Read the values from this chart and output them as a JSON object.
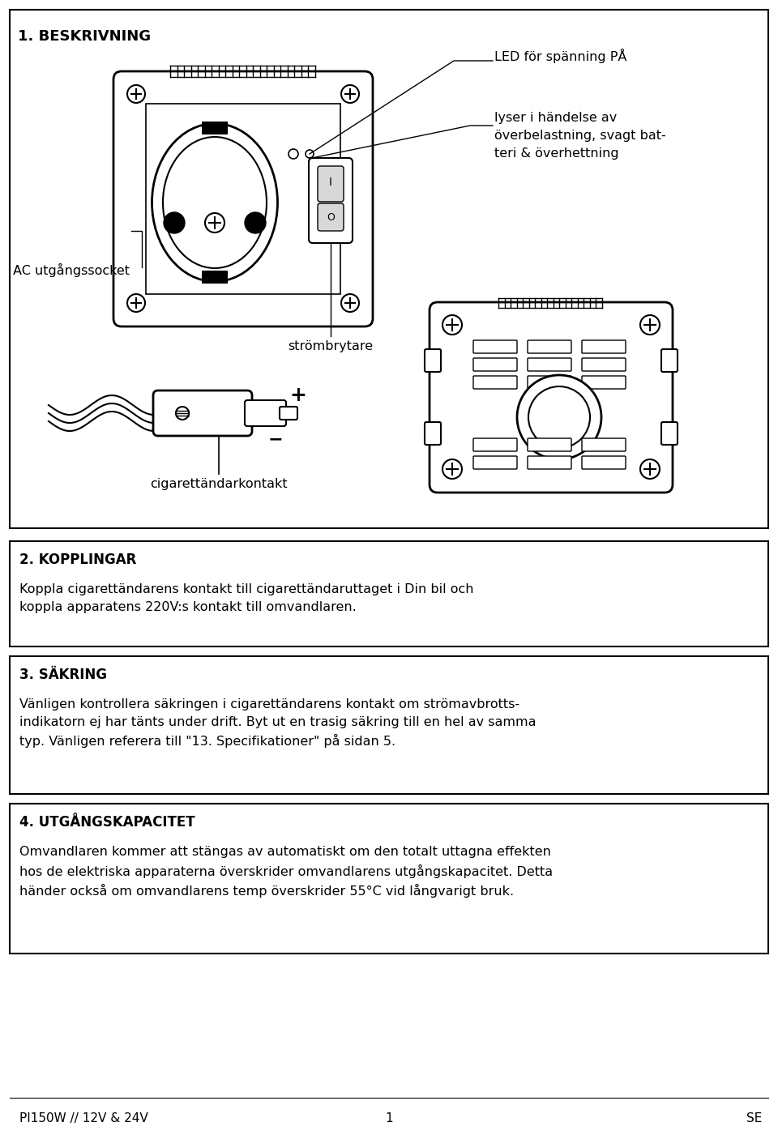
{
  "bg_color": "#ffffff",
  "section1_title": "1. BESKRIVNING",
  "section2_title": "2. KOPPLINGAR",
  "section2_body": "Koppla cigarettändarens kontakt till cigarettändaruttaget i Din bil och\nkoppla apparatens 220V:s kontakt till omvandlaren.",
  "section3_title": "3. SÄKRING",
  "section3_body": "Vänligen kontrollera säkringen i cigarettändarens kontakt om strömavbrotts-\nindikatorn ej har tänts under drift. Byt ut en trasig säkring till en hel av samma\ntyp. Vänligen referera till \"13. Specifikationer\" på sidan 5.",
  "section4_title": "4. UTGÅNGSKAPACITET",
  "section4_body": "Omvandlaren kommer att stängas av automatiskt om den totalt uttagna effekten\nhos de elektriska apparaterna överskrider omvandlarens utgångskapacitet. Detta\nhänder också om omvandlarens temp överskrider 55°C vid långvarigt bruk.",
  "footer_left": "PI150W // 12V & 24V",
  "footer_center": "1",
  "footer_right": "SE",
  "label_led": "LED för spänning PÅ",
  "label_overload_1": "lyser i händelse av",
  "label_overload_2": "överbelastning, svagt bat-",
  "label_overload_3": "teri & överhettning",
  "label_ac": "AC utgångssocket",
  "label_strombrytare": "strömbrytare",
  "label_cigarett": "cigarettändarkontakt"
}
